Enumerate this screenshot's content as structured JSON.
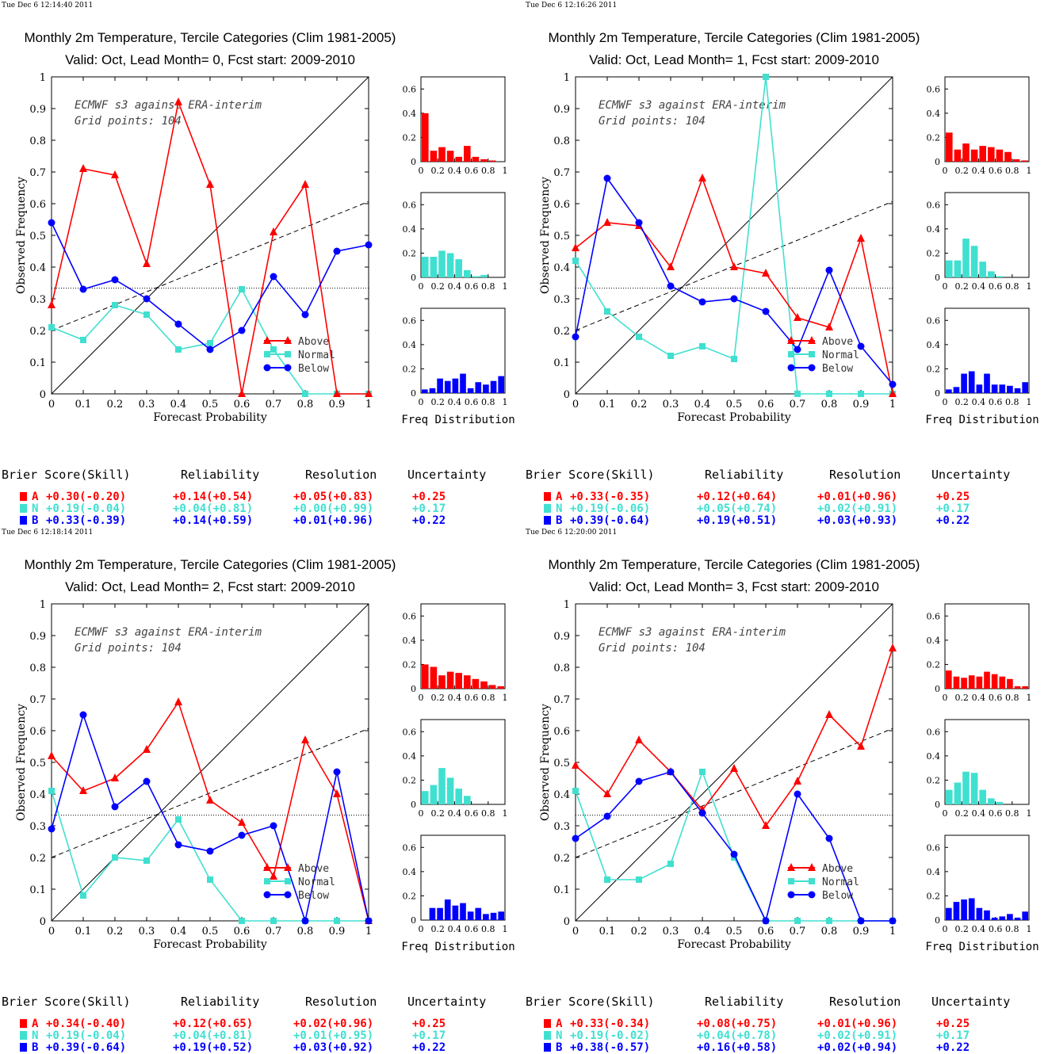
{
  "common": {
    "title": "Monthly 2m Temperature, Tercile Categories (Clim 1981-2005)",
    "annotation_line1": "ECMWF s3 against ERA-interim",
    "annotation_line2": "Grid points:  104",
    "ylabel": "Observed Frequency",
    "xlabel": "Forecast Probability",
    "hist_label": "Freq Distribution",
    "legend": [
      "Above",
      "Normal",
      "Below"
    ],
    "score_headers": [
      "Brier Score(Skill)",
      "Reliability",
      "Resolution",
      "Uncertainty"
    ],
    "category_letters": [
      "A",
      "N",
      "B"
    ],
    "colors": {
      "above": "#ff0000",
      "normal": "#40e0d0",
      "below": "#0000ff"
    }
  },
  "chart_data": [
    {
      "type": "line",
      "timestamp": "Tue Dec  6 12:14:40 2011",
      "subtitle": "Valid: Oct, Lead Month= 0, Fcst start: 2009-2010",
      "xlabel": "Forecast Probability",
      "ylabel": "Observed Frequency",
      "xlim": [
        0,
        1
      ],
      "ylim": [
        0,
        1
      ],
      "x": [
        0,
        0.1,
        0.2,
        0.3,
        0.4,
        0.5,
        0.6,
        0.7,
        0.8,
        0.9,
        1
      ],
      "series": [
        {
          "name": "Above",
          "values": [
            0.28,
            0.71,
            0.69,
            0.41,
            0.92,
            0.66,
            0.0,
            0.51,
            0.66,
            0.0,
            0.0
          ]
        },
        {
          "name": "Normal",
          "values": [
            0.21,
            0.17,
            0.28,
            0.25,
            0.14,
            0.16,
            0.33,
            0.14,
            0.0,
            0.0,
            0.0
          ]
        },
        {
          "name": "Below",
          "values": [
            0.54,
            0.33,
            0.36,
            0.3,
            0.22,
            0.14,
            0.2,
            0.37,
            0.25,
            0.45,
            0.47
          ]
        }
      ],
      "histograms": [
        {
          "name": "Above",
          "values": [
            0.4,
            0.09,
            0.12,
            0.09,
            0.04,
            0.13,
            0.04,
            0.02,
            0.01,
            0.0
          ]
        },
        {
          "name": "Normal",
          "values": [
            0.17,
            0.17,
            0.22,
            0.2,
            0.15,
            0.06,
            0.01,
            0.02,
            0.0,
            0.0
          ]
        },
        {
          "name": "Below",
          "values": [
            0.03,
            0.04,
            0.12,
            0.1,
            0.12,
            0.16,
            0.04,
            0.09,
            0.07,
            0.1,
            0.14
          ]
        }
      ],
      "hist_ylim": [
        0,
        0.7
      ],
      "scores": [
        [
          "+0.30(-0.20)",
          "+0.14(+0.54)",
          "+0.05(+0.83)",
          "+0.25"
        ],
        [
          "+0.19(-0.04)",
          "+0.04(+0.81)",
          "+0.00(+0.99)",
          "+0.17"
        ],
        [
          "+0.33(-0.39)",
          "+0.14(+0.59)",
          "+0.01(+0.96)",
          "+0.22"
        ]
      ]
    },
    {
      "type": "line",
      "timestamp": "Tue Dec  6 12:16:26 2011",
      "subtitle": "Valid: Oct, Lead Month= 1, Fcst start: 2009-2010",
      "xlabel": "Forecast Probability",
      "ylabel": "Observed Frequency",
      "xlim": [
        0,
        1
      ],
      "ylim": [
        0,
        1
      ],
      "x": [
        0,
        0.1,
        0.2,
        0.3,
        0.4,
        0.5,
        0.6,
        0.7,
        0.8,
        0.9,
        1
      ],
      "series": [
        {
          "name": "Above",
          "values": [
            0.46,
            0.54,
            0.53,
            0.4,
            0.68,
            0.4,
            0.38,
            0.24,
            0.21,
            0.49,
            0.0
          ]
        },
        {
          "name": "Normal",
          "values": [
            0.42,
            0.26,
            0.18,
            0.12,
            0.15,
            0.11,
            1.0,
            0.0,
            0.0,
            0.0,
            0.0
          ]
        },
        {
          "name": "Below",
          "values": [
            0.18,
            0.68,
            0.54,
            0.34,
            0.29,
            0.3,
            0.26,
            0.14,
            0.39,
            0.15,
            0.03
          ]
        }
      ],
      "histograms": [
        {
          "name": "Above",
          "values": [
            0.24,
            0.1,
            0.15,
            0.1,
            0.13,
            0.12,
            0.1,
            0.08,
            0.02,
            0.01
          ]
        },
        {
          "name": "Normal",
          "values": [
            0.14,
            0.14,
            0.32,
            0.26,
            0.13,
            0.05,
            0.01,
            0.0,
            0.0,
            0.0
          ]
        },
        {
          "name": "Below",
          "values": [
            0.03,
            0.05,
            0.16,
            0.18,
            0.07,
            0.16,
            0.07,
            0.07,
            0.06,
            0.04,
            0.09
          ]
        }
      ],
      "hist_ylim": [
        0,
        0.7
      ],
      "scores": [
        [
          "+0.33(-0.35)",
          "+0.12(+0.64)",
          "+0.01(+0.96)",
          "+0.25"
        ],
        [
          "+0.19(-0.06)",
          "+0.05(+0.74)",
          "+0.02(+0.91)",
          "+0.17"
        ],
        [
          "+0.39(-0.64)",
          "+0.19(+0.51)",
          "+0.03(+0.93)",
          "+0.22"
        ]
      ]
    },
    {
      "type": "line",
      "timestamp": "Tue Dec  6 12:18:14 2011",
      "subtitle": "Valid: Oct, Lead Month= 2, Fcst start: 2009-2010",
      "xlabel": "Forecast Probability",
      "ylabel": "Observed Frequency",
      "xlim": [
        0,
        1
      ],
      "ylim": [
        0,
        1
      ],
      "x": [
        0,
        0.1,
        0.2,
        0.3,
        0.4,
        0.5,
        0.6,
        0.7,
        0.8,
        0.9,
        1
      ],
      "series": [
        {
          "name": "Above",
          "values": [
            0.52,
            0.41,
            0.45,
            0.54,
            0.69,
            0.38,
            0.31,
            0.14,
            0.57,
            0.4,
            0.0
          ]
        },
        {
          "name": "Normal",
          "values": [
            0.41,
            0.08,
            0.2,
            0.19,
            0.32,
            0.13,
            0.0,
            0.0,
            0.0,
            0.0,
            0.0
          ]
        },
        {
          "name": "Below",
          "values": [
            0.29,
            0.65,
            0.36,
            0.44,
            0.24,
            0.22,
            0.27,
            0.3,
            0.0,
            0.47,
            0.0
          ]
        }
      ],
      "histograms": [
        {
          "name": "Above",
          "values": [
            0.2,
            0.18,
            0.11,
            0.14,
            0.13,
            0.11,
            0.08,
            0.06,
            0.03,
            0.02
          ]
        },
        {
          "name": "Normal",
          "values": [
            0.11,
            0.16,
            0.3,
            0.22,
            0.13,
            0.07,
            0.0,
            0.0,
            0.0,
            0.0
          ]
        },
        {
          "name": "Below",
          "values": [
            0.0,
            0.1,
            0.1,
            0.17,
            0.12,
            0.14,
            0.07,
            0.1,
            0.05,
            0.06,
            0.07
          ]
        }
      ],
      "hist_ylim": [
        0,
        0.7
      ],
      "scores": [
        [
          "+0.34(-0.40)",
          "+0.12(+0.65)",
          "+0.02(+0.96)",
          "+0.25"
        ],
        [
          "+0.19(-0.04)",
          "+0.04(+0.81)",
          "+0.01(+0.95)",
          "+0.17"
        ],
        [
          "+0.39(-0.64)",
          "+0.19(+0.52)",
          "+0.03(+0.92)",
          "+0.22"
        ]
      ]
    },
    {
      "type": "line",
      "timestamp": "Tue Dec  6 12:20:00 2011",
      "subtitle": "Valid: Oct, Lead Month= 3, Fcst start: 2009-2010",
      "xlabel": "Forecast Probability",
      "ylabel": "Observed Frequency",
      "xlim": [
        0,
        1
      ],
      "ylim": [
        0,
        1
      ],
      "x": [
        0,
        0.1,
        0.2,
        0.3,
        0.4,
        0.5,
        0.6,
        0.7,
        0.8,
        0.9,
        1
      ],
      "series": [
        {
          "name": "Above",
          "values": [
            0.49,
            0.4,
            0.57,
            0.47,
            0.35,
            0.48,
            0.3,
            0.44,
            0.65,
            0.55,
            0.86
          ]
        },
        {
          "name": "Normal",
          "values": [
            0.41,
            0.13,
            0.13,
            0.18,
            0.47,
            0.2,
            0.0,
            0.0,
            0.0,
            0.0,
            0.0
          ]
        },
        {
          "name": "Below",
          "values": [
            0.26,
            0.33,
            0.44,
            0.47,
            0.34,
            0.21,
            0.0,
            0.4,
            0.26,
            0.0,
            0.0
          ]
        }
      ],
      "histograms": [
        {
          "name": "Above",
          "values": [
            0.15,
            0.1,
            0.09,
            0.11,
            0.1,
            0.14,
            0.12,
            0.1,
            0.08,
            0.02,
            0.02
          ]
        },
        {
          "name": "Normal",
          "values": [
            0.12,
            0.18,
            0.27,
            0.26,
            0.12,
            0.05,
            0.02,
            0.0,
            0.0,
            0.0
          ]
        },
        {
          "name": "Below",
          "values": [
            0.1,
            0.15,
            0.17,
            0.18,
            0.1,
            0.08,
            0.02,
            0.03,
            0.05,
            0.02,
            0.07
          ]
        }
      ],
      "hist_ylim": [
        0,
        0.7
      ],
      "scores": [
        [
          "+0.33(-0.34)",
          "+0.08(+0.75)",
          "+0.01(+0.96)",
          "+0.25"
        ],
        [
          "+0.19(-0.02)",
          "+0.04(+0.78)",
          "+0.02(+0.91)",
          "+0.17"
        ],
        [
          "+0.38(-0.57)",
          "+0.16(+0.58)",
          "+0.02(+0.94)",
          "+0.22"
        ]
      ]
    }
  ]
}
